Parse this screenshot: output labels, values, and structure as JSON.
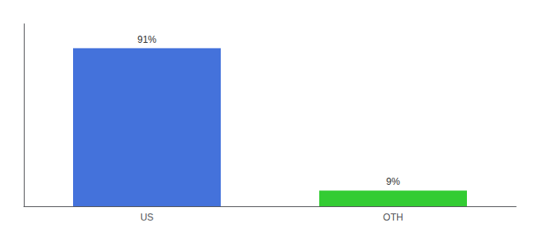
{
  "chart_data": {
    "type": "bar",
    "categories": [
      "US",
      "OTH"
    ],
    "values": [
      91,
      9
    ],
    "value_labels": [
      "91%",
      "9%"
    ],
    "colors": [
      "#4472db",
      "#33cc33"
    ],
    "ylim": [
      0,
      105
    ],
    "data_labels": true,
    "tick_labels": "x",
    "grid": false
  }
}
